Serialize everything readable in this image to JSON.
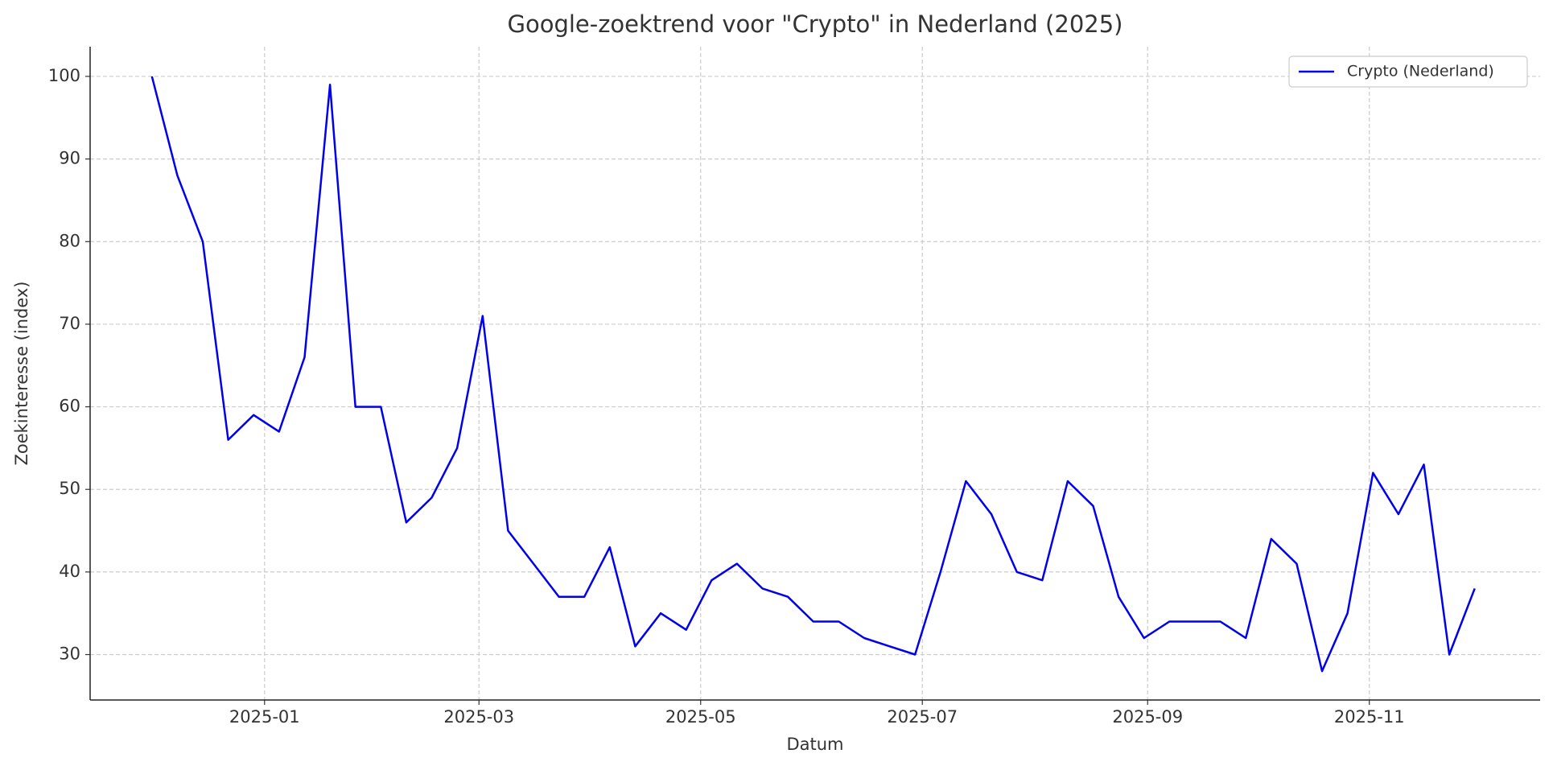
{
  "chart_data": {
    "type": "line",
    "title": "Google-zoektrend voor \"Crypto\" in Nederland (2025)",
    "x_label": "Datum",
    "y_label": "Zoekinteresse (index)",
    "x": [
      "2024-12-01",
      "2024-12-08",
      "2024-12-15",
      "2024-12-22",
      "2024-12-29",
      "2025-01-05",
      "2025-01-12",
      "2025-01-19",
      "2025-01-26",
      "2025-02-02",
      "2025-02-09",
      "2025-02-16",
      "2025-02-23",
      "2025-03-02",
      "2025-03-09",
      "2025-03-16",
      "2025-03-23",
      "2025-03-30",
      "2025-04-06",
      "2025-04-13",
      "2025-04-20",
      "2025-04-27",
      "2025-05-04",
      "2025-05-11",
      "2025-05-18",
      "2025-05-25",
      "2025-06-01",
      "2025-06-08",
      "2025-06-15",
      "2025-06-22",
      "2025-06-29",
      "2025-07-06",
      "2025-07-13",
      "2025-07-20",
      "2025-07-27",
      "2025-08-03",
      "2025-08-10",
      "2025-08-17",
      "2025-08-24",
      "2025-08-31",
      "2025-09-07",
      "2025-09-14",
      "2025-09-21",
      "2025-09-28",
      "2025-10-05",
      "2025-10-12",
      "2025-10-19",
      "2025-10-26",
      "2025-11-02",
      "2025-11-09",
      "2025-11-16",
      "2025-11-23",
      "2025-11-30"
    ],
    "series": [
      {
        "name": "Crypto (Nederland)",
        "color": "#0000ee",
        "values": [
          100,
          88,
          80,
          56,
          59,
          57,
          66,
          99,
          60,
          60,
          46,
          49,
          55,
          71,
          45,
          41,
          37,
          37,
          43,
          31,
          35,
          33,
          39,
          41,
          38,
          37,
          34,
          34,
          32,
          31,
          30,
          40,
          51,
          47,
          40,
          39,
          51,
          48,
          37,
          32,
          34,
          34,
          34,
          32,
          44,
          41,
          28,
          35,
          52,
          47,
          53,
          30,
          38
        ]
      }
    ],
    "xlim": [
      "2024-11-14",
      "2025-12-18"
    ],
    "xticks": [
      "2025-01",
      "2025-03",
      "2025-05",
      "2025-07",
      "2025-09",
      "2025-11"
    ],
    "ylim": [
      24.5,
      103.6
    ],
    "yticks": [
      30,
      40,
      50,
      60,
      70,
      80,
      90,
      100
    ],
    "grid": true,
    "legend": "upper right"
  }
}
